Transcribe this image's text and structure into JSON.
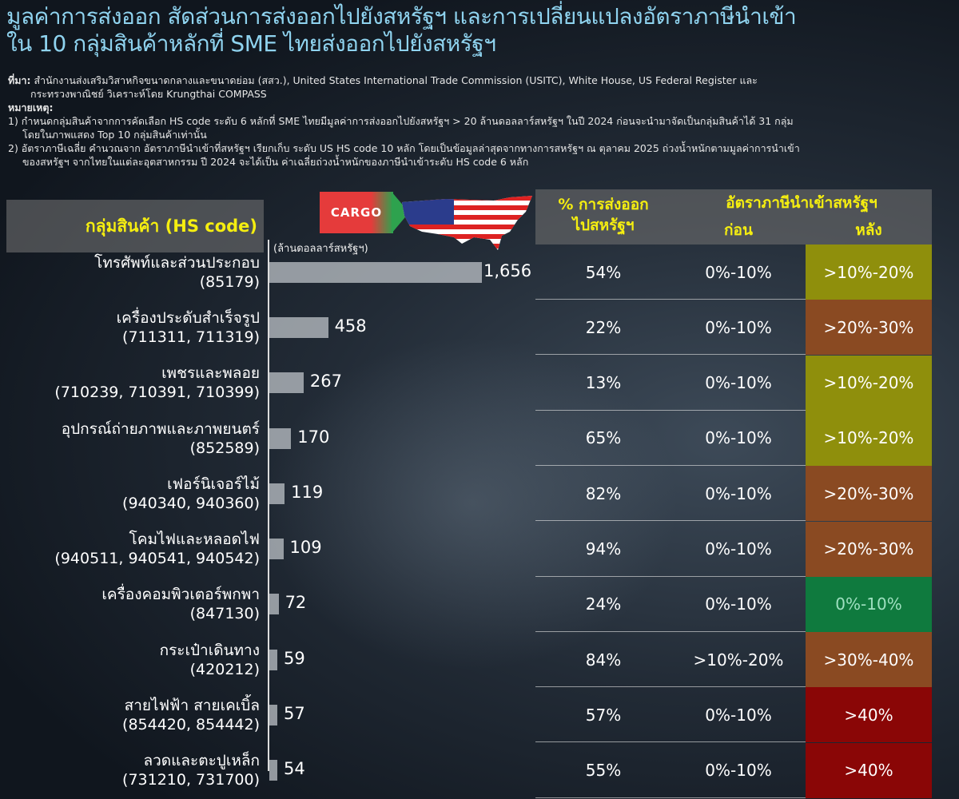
{
  "title": [
    "มูลค่าการส่งออก สัดส่วนการส่งออกไปยังสหรัฐฯ และการเปลี่ยนแปลงอัตราภาษีนำเข้า",
    "ใน 10 กลุ่มสินค้าหลักที่ SME ไทยส่งออกไปยังสหรัฐฯ"
  ],
  "notes": {
    "source_label": "ที่มา:",
    "source": "สำนักงานส่งเสริมวิสาหกิจขนาดกลางและขนาดย่อม (สสว.), United States International Trade Commission (USITC), White House, US Federal Register และ",
    "source2": "กระทรวงพาณิชย์ วิเคราะห์โดย Krungthai COMPASS",
    "remark_label": "หมายเหตุ:",
    "n1": "1) กำหนดกลุ่มสินค้าจากการคัดเลือก HS code ระดับ 6 หลักที่ SME ไทยมีมูลค่าการส่งออกไปยังสหรัฐฯ > 20 ล้านดอลลาร์สหรัฐฯ ในปี 2024 ก่อนจะนำมาจัดเป็นกลุ่มสินค้าได้ 31 กลุ่ม",
    "n1b": "โดยในภาพแสดง Top 10 กลุ่มสินค้าเท่านั้น",
    "n2": "2) อัตราภาษีเฉลี่ย คำนวณจาก อัตราภาษีนำเข้าที่สหรัฐฯ เรียกเก็บ ระดับ US HS code 10 หลัก โดยเป็นข้อมูลล่าสุดจากทางการสหรัฐฯ ณ ตุลาคม 2025 ถ่วงน้ำหนักตามมูลค่าการนำเข้า",
    "n2b": "ของสหรัฐฯ จากไทยในแต่ละอุตสาหกรรม ปี 2024 จะได้เป็น ค่าเฉลี่ยถ่วงน้ำหนักของภาษีนำเข้าระดับ HS code 6 หลัก"
  },
  "logo": {
    "cargo_text": "CARGO"
  },
  "chart_data": {
    "type": "bar",
    "orientation": "horizontal",
    "category_header": "กลุ่มสินค้า (HS code)",
    "unit": "(ล้านดอลลาร์สหรัฐฯ)",
    "categories": [
      {
        "name": "โทรศัพท์และส่วนประกอบ",
        "code": "(85179)"
      },
      {
        "name": "เครื่องประดับสำเร็จรูป",
        "code": "(711311, 711319)"
      },
      {
        "name": "เพชรและพลอย",
        "code": "(710239, 710391, 710399)"
      },
      {
        "name": "อุปกรณ์ถ่ายภาพและภาพยนตร์",
        "code": "(852589)"
      },
      {
        "name": "เฟอร์นิเจอร์ไม้",
        "code": "(940340, 940360)"
      },
      {
        "name": "โคมไฟและหลอดไฟ",
        "code": "(940511, 940541, 940542)"
      },
      {
        "name": "เครื่องคอมพิวเตอร์พกพา",
        "code": "(847130)"
      },
      {
        "name": "กระเป๋าเดินทาง",
        "code": "(420212)"
      },
      {
        "name": "สายไฟฟ้า สายเคเบิ้ล",
        "code": "(854420, 854442)"
      },
      {
        "name": "ลวดและตะปูเหล็ก",
        "code": "(731210, 731700)"
      }
    ],
    "values": [
      1656,
      458,
      267,
      170,
      119,
      109,
      72,
      59,
      57,
      54
    ],
    "value_labels": [
      "1,656",
      "458",
      "267",
      "170",
      "119",
      "109",
      "72",
      "59",
      "57",
      "54"
    ]
  },
  "table": {
    "header_share": [
      "% การส่งออก",
      "ไปสหรัฐฯ"
    ],
    "header_tariff": "อัตราภาษีนำเข้าสหรัฐฯ",
    "header_before": "ก่อน",
    "header_after": "หลัง",
    "rows": [
      {
        "share": "54%",
        "before": "0%-10%",
        "after": "&gt;10%-20%"
      },
      {
        "share": "22%",
        "before": "0%-10%",
        "after": ">20%-30%"
      },
      {
        "share": "13%",
        "before": "0%-10%",
        "after": ">10%-20%"
      },
      {
        "share": "65%",
        "before": "0%-10%",
        "after": ">10%-20%"
      },
      {
        "share": "82%",
        "before": "0%-10%",
        "after": ">20%-30%"
      },
      {
        "share": "94%",
        "before": "0%-10%",
        "after": ">20%-30%"
      },
      {
        "share": "24%",
        "before": "0%-10%",
        "after": "0%-10%"
      },
      {
        "share": "84%",
        "before": ">10%-20%",
        "after": ">30%-40%"
      },
      {
        "share": "57%",
        "before": "0%-10%",
        "after": ">40%"
      },
      {
        "share": "55%",
        "before": "0%-10%",
        "after": ">40%"
      }
    ],
    "after_colors": {
      "0%-10%": "#0f7a3e",
      ">10%-20%": "#8f8f0c",
      ">20%-30%": "#8a4a22",
      ">30%-40%": "#8a4a22",
      ">40%": "#8a0606"
    }
  }
}
